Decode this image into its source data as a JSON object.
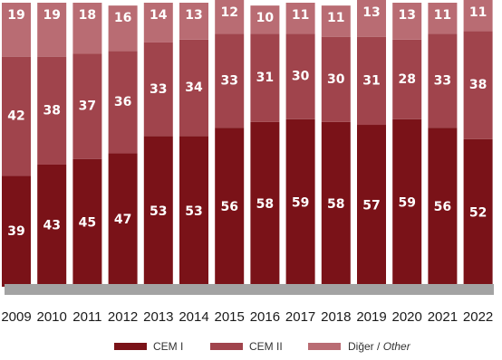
{
  "chart_data": {
    "type": "bar",
    "stacked": true,
    "percent": true,
    "categories": [
      "2009",
      "2010",
      "2011",
      "2012",
      "2013",
      "2014",
      "2015",
      "2016",
      "2017",
      "2018",
      "2019",
      "2020",
      "2021",
      "2022"
    ],
    "series": [
      {
        "name": "CEM I",
        "color": "#7a1218",
        "values": [
          39,
          43,
          45,
          47,
          53,
          53,
          56,
          58,
          59,
          58,
          57,
          59,
          56,
          52
        ]
      },
      {
        "name": "CEM II",
        "color": "#a0444c",
        "values": [
          42,
          38,
          37,
          36,
          33,
          34,
          33,
          31,
          30,
          30,
          31,
          28,
          33,
          38
        ]
      },
      {
        "name": "Diğer / Other",
        "color": "#b96c73",
        "values": [
          19,
          19,
          18,
          16,
          14,
          13,
          12,
          10,
          11,
          11,
          13,
          13,
          11,
          11
        ]
      }
    ],
    "legend": {
      "position": "bottom",
      "items": [
        {
          "label": "CEM I"
        },
        {
          "label": "CEM II"
        },
        {
          "label_main": "Diğer / ",
          "label_italic": "Other"
        }
      ]
    },
    "ylim": [
      0,
      100
    ],
    "grid": false,
    "base_color": "#a3a3a3"
  }
}
